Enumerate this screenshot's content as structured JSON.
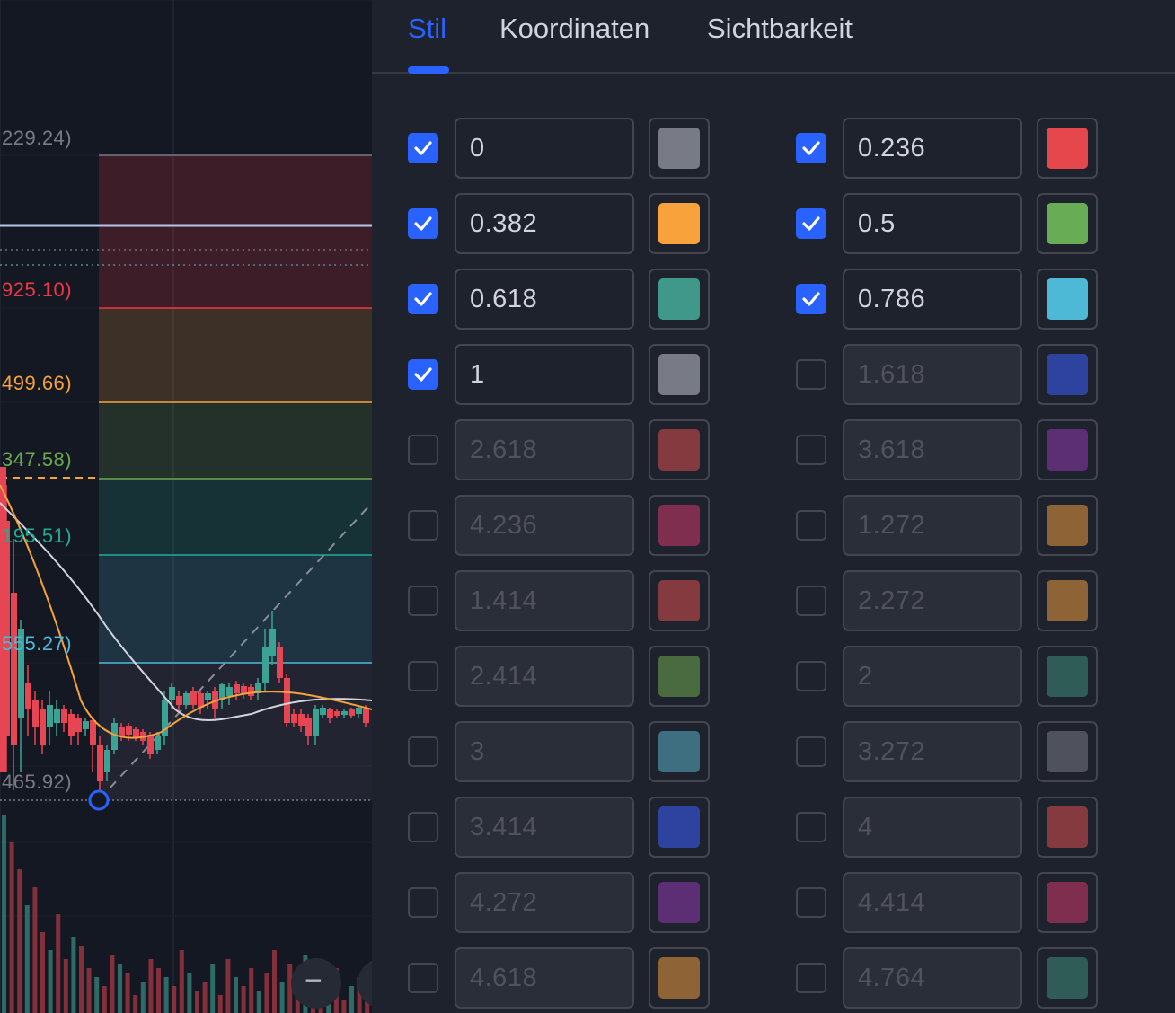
{
  "tabs": [
    {
      "label": "Stil",
      "active": true
    },
    {
      "label": "Koordinaten",
      "active": false
    },
    {
      "label": "Sichtbarkeit",
      "active": false
    }
  ],
  "chart_labels": [
    {
      "text": "229.24)",
      "color": "#787b86"
    },
    {
      "text": "925.10)",
      "color": "#f23645"
    },
    {
      "text": "499.66)",
      "color": "#f7a23b"
    },
    {
      "text": "347.58)",
      "color": "#6aa84f"
    },
    {
      "text": "195.51)",
      "color": "#22ab94"
    },
    {
      "text": "555.27)",
      "color": "#4eb9d6"
    },
    {
      "text": "465.92)",
      "color": "#787b86"
    }
  ],
  "zoom_out_label": "−",
  "levels_left": [
    {
      "value": "0",
      "checked": true,
      "color": "#787b86"
    },
    {
      "value": "0.382",
      "checked": true,
      "color": "#f7a23b"
    },
    {
      "value": "0.618",
      "checked": true,
      "color": "#40988a"
    },
    {
      "value": "1",
      "checked": true,
      "color": "#787b86"
    },
    {
      "value": "2.618",
      "checked": false,
      "color": "#843a3f"
    },
    {
      "value": "4.236",
      "checked": false,
      "color": "#7f2e4f"
    },
    {
      "value": "1.414",
      "checked": false,
      "color": "#843a3f"
    },
    {
      "value": "2.414",
      "checked": false,
      "color": "#4a6b3f"
    },
    {
      "value": "3",
      "checked": false,
      "color": "#3e6f80"
    },
    {
      "value": "3.414",
      "checked": false,
      "color": "#2e43a0"
    },
    {
      "value": "4.272",
      "checked": false,
      "color": "#5c2f75"
    },
    {
      "value": "4.618",
      "checked": false,
      "color": "#8e6336"
    }
  ],
  "levels_right": [
    {
      "value": "0.236",
      "checked": true,
      "color": "#e6474d"
    },
    {
      "value": "0.5",
      "checked": true,
      "color": "#69ac56"
    },
    {
      "value": "0.786",
      "checked": true,
      "color": "#4eb9d6"
    },
    {
      "value": "1.618",
      "checked": false,
      "color": "#2e43a0"
    },
    {
      "value": "3.618",
      "checked": false,
      "color": "#5c2f75"
    },
    {
      "value": "1.272",
      "checked": false,
      "color": "#8e6336"
    },
    {
      "value": "2.272",
      "checked": false,
      "color": "#8e6336"
    },
    {
      "value": "2",
      "checked": false,
      "color": "#2f5c57"
    },
    {
      "value": "3.272",
      "checked": false,
      "color": "#4f525c"
    },
    {
      "value": "4",
      "checked": false,
      "color": "#843a3f"
    },
    {
      "value": "4.414",
      "checked": false,
      "color": "#7f2e4f"
    },
    {
      "value": "4.764",
      "checked": false,
      "color": "#2f5c57"
    }
  ]
}
